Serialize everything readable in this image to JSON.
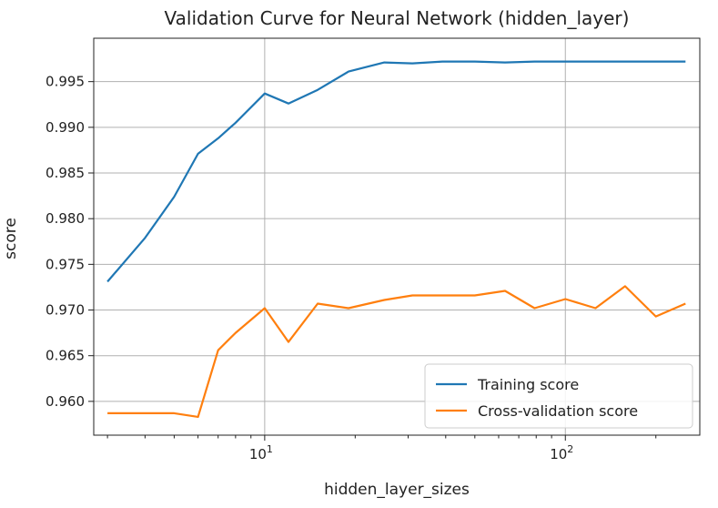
{
  "chart_data": {
    "type": "line",
    "title": "Validation Curve for Neural Network (hidden_layer)",
    "xlabel": "hidden_layer_sizes",
    "ylabel": "score",
    "xscale": "log",
    "xlim": [
      2.7,
      280
    ],
    "ylim": [
      0.9563,
      0.99975
    ],
    "grid": true,
    "legend_position": "lower-right",
    "x_ticks": [
      {
        "value": 10,
        "base": "10",
        "exp": "1"
      },
      {
        "value": 100,
        "base": "10",
        "exp": "2"
      }
    ],
    "x_minor_ticks": [
      3,
      4,
      5,
      6,
      7,
      8,
      9,
      20,
      30,
      40,
      50,
      60,
      70,
      80,
      90,
      200
    ],
    "y_ticks": [
      {
        "value": 0.96,
        "label": "0.960"
      },
      {
        "value": 0.965,
        "label": "0.965"
      },
      {
        "value": 0.97,
        "label": "0.970"
      },
      {
        "value": 0.975,
        "label": "0.975"
      },
      {
        "value": 0.98,
        "label": "0.980"
      },
      {
        "value": 0.985,
        "label": "0.985"
      },
      {
        "value": 0.99,
        "label": "0.990"
      },
      {
        "value": 0.995,
        "label": "0.995"
      }
    ],
    "x": [
      3,
      4,
      5,
      6,
      7,
      8,
      10,
      12,
      15,
      19,
      25,
      31,
      39,
      50,
      63,
      79,
      100,
      126,
      158,
      200,
      251
    ],
    "series": [
      {
        "name": "Training score",
        "color": "#1f77b4",
        "values": [
          0.9731,
          0.9779,
          0.9824,
          0.9871,
          0.9888,
          0.9905,
          0.9937,
          0.9926,
          0.9941,
          0.9961,
          0.9971,
          0.997,
          0.9972,
          0.9972,
          0.9971,
          0.9972,
          0.9972,
          0.9972,
          0.9972,
          0.9972,
          0.9972
        ]
      },
      {
        "name": "Cross-validation score",
        "color": "#ff7f0e",
        "values": [
          0.9587,
          0.9587,
          0.9587,
          0.9583,
          0.9656,
          0.9675,
          0.9702,
          0.9665,
          0.9707,
          0.9702,
          0.9711,
          0.9716,
          0.9716,
          0.9716,
          0.9721,
          0.9702,
          0.9712,
          0.9702,
          0.9726,
          0.9693,
          0.9707
        ]
      }
    ]
  }
}
